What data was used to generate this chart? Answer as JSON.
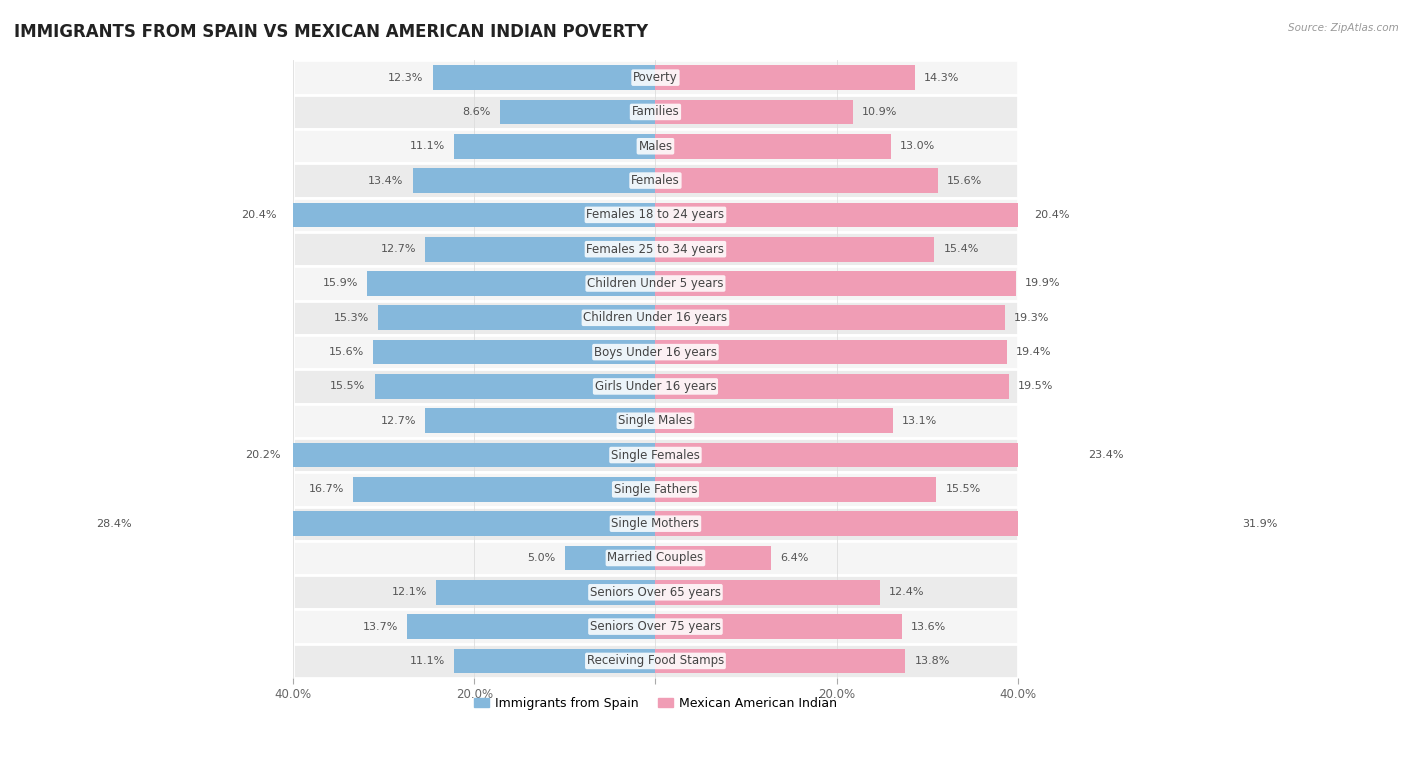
{
  "title": "IMMIGRANTS FROM SPAIN VS MEXICAN AMERICAN INDIAN POVERTY",
  "source": "Source: ZipAtlas.com",
  "categories": [
    "Poverty",
    "Families",
    "Males",
    "Females",
    "Females 18 to 24 years",
    "Females 25 to 34 years",
    "Children Under 5 years",
    "Children Under 16 years",
    "Boys Under 16 years",
    "Girls Under 16 years",
    "Single Males",
    "Single Females",
    "Single Fathers",
    "Single Mothers",
    "Married Couples",
    "Seniors Over 65 years",
    "Seniors Over 75 years",
    "Receiving Food Stamps"
  ],
  "spain_values": [
    12.3,
    8.6,
    11.1,
    13.4,
    20.4,
    12.7,
    15.9,
    15.3,
    15.6,
    15.5,
    12.7,
    20.2,
    16.7,
    28.4,
    5.0,
    12.1,
    13.7,
    11.1
  ],
  "mexican_values": [
    14.3,
    10.9,
    13.0,
    15.6,
    20.4,
    15.4,
    19.9,
    19.3,
    19.4,
    19.5,
    13.1,
    23.4,
    15.5,
    31.9,
    6.4,
    12.4,
    13.6,
    13.8
  ],
  "spain_color": "#85b8dc",
  "mexican_color": "#f09db5",
  "bar_height": 0.72,
  "xlim_max": 40,
  "row_bg_colors": [
    "#f5f5f5",
    "#ebebeb"
  ],
  "row_separator_color": "#ffffff",
  "title_fontsize": 12,
  "cat_fontsize": 8.5,
  "value_fontsize": 8,
  "legend_label_spain": "Immigrants from Spain",
  "legend_label_mexican": "Mexican American Indian",
  "axis_tick_labels": [
    "40.0%",
    "20.0%",
    "",
    "20.0%",
    "40.0%"
  ],
  "axis_tick_positions": [
    0,
    10,
    20,
    30,
    40
  ]
}
